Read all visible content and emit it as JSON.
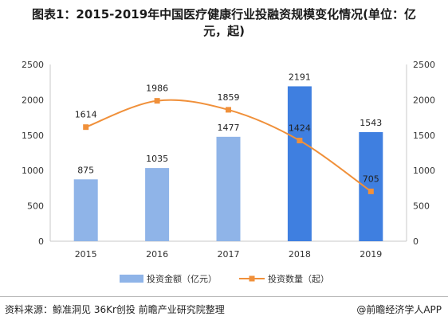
{
  "title_line1": "图表1：2015-2019年中国医疗健康行业投融资规模变化情况(单位：亿",
  "title_line2": "元，起)",
  "source": "资料来源：鲸准洞见 36Kr创投 前瞻产业研究院整理",
  "brand": "@前瞻经济学人APP",
  "colors": {
    "bar": "#8fb4e8",
    "bar_highlight": "#3f7fe0",
    "line": "#f0903a"
  },
  "chart_data": {
    "type": "bar",
    "categories": [
      "2015",
      "2016",
      "2017",
      "2018",
      "2019"
    ],
    "series": [
      {
        "name": "投资金额（亿元）",
        "type": "bar",
        "axis": "left",
        "values": [
          875,
          1035,
          1477,
          2191,
          1543
        ]
      },
      {
        "name": "投资数量（起）",
        "type": "line",
        "axis": "right",
        "values": [
          1614,
          1986,
          1859,
          1424,
          705
        ]
      }
    ],
    "ylim": [
      0,
      2500
    ],
    "y2lim": [
      0,
      2500
    ],
    "yticks": [
      0,
      500,
      1000,
      1500,
      2000,
      2500
    ],
    "legend": "bottom"
  }
}
